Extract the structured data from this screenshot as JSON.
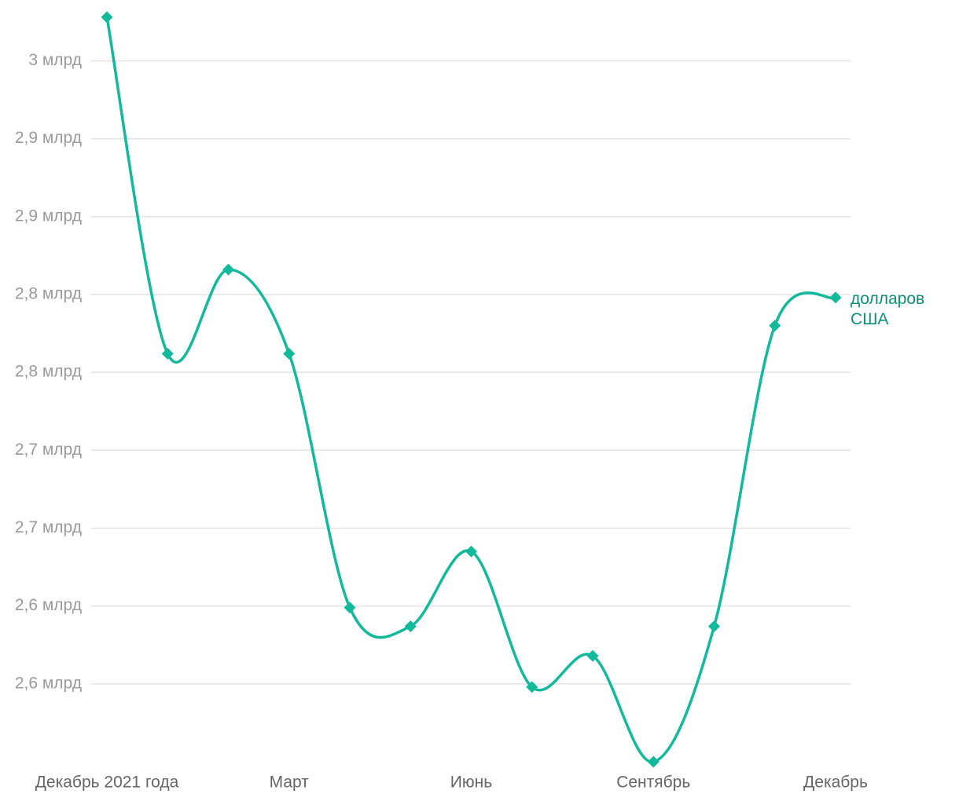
{
  "chart_data": {
    "type": "line",
    "categories": [
      "Декабрь 2021 года",
      null,
      null,
      "Март",
      null,
      null,
      "Июнь",
      null,
      null,
      "Сентябрь",
      null,
      null,
      "Декабрь"
    ],
    "series": [
      {
        "name": "долларов США",
        "color": "#13b99b",
        "values": [
          3.028,
          2.812,
          2.866,
          2.812,
          2.649,
          2.637,
          2.685,
          2.598,
          2.618,
          2.55,
          2.637,
          2.83,
          2.848
        ]
      }
    ],
    "ylim": [
      2.55,
      3.034
    ],
    "yticks": [
      {
        "value": 3,
        "label": "3 млрд"
      },
      {
        "value": 2.95,
        "label": "2,9 млрд"
      },
      {
        "value": 2.9,
        "label": "2,9 млрд"
      },
      {
        "value": 2.85,
        "label": "2,8 млрд"
      },
      {
        "value": 2.8,
        "label": "2,8 млрд"
      },
      {
        "value": 2.75,
        "label": "2,7 млрд"
      },
      {
        "value": 2.7,
        "label": "2,7 млрд"
      },
      {
        "value": 2.65,
        "label": "2,6 млрд"
      },
      {
        "value": 2.6,
        "label": "2,6 млрд"
      }
    ],
    "grid": true
  }
}
